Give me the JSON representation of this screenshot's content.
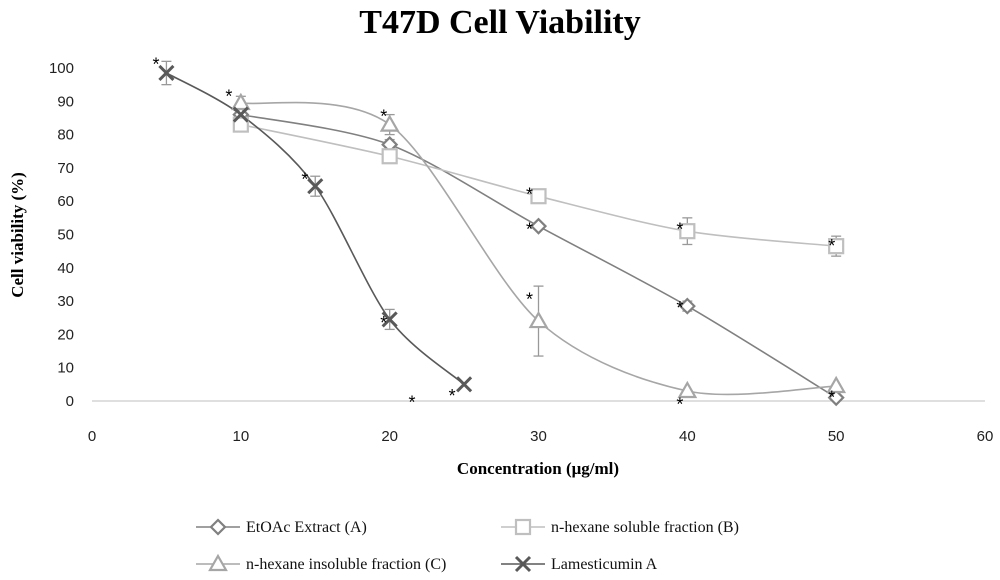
{
  "chart_data": {
    "type": "line",
    "title": "T47D Cell Viability",
    "xlabel": "Concentration (μg/ml)",
    "ylabel": "Cell viability (%)",
    "xlim": [
      0,
      60
    ],
    "ylim": [
      0,
      100
    ],
    "x_ticks": [
      "0",
      "10",
      "20",
      "30",
      "40",
      "50",
      "60"
    ],
    "y_ticks": [
      "0",
      "10",
      "20",
      "30",
      "40",
      "50",
      "60",
      "70",
      "80",
      "90",
      "100"
    ],
    "grid": false,
    "legend_position": "bottom",
    "series": [
      {
        "name": "EtOAc Extract (A)",
        "marker": "diamond",
        "color": "#808080",
        "x": [
          10,
          20,
          30,
          40,
          50
        ],
        "y": [
          86,
          77,
          52.5,
          28.5,
          1
        ],
        "err": [
          0,
          1.5,
          0,
          1.5,
          0
        ]
      },
      {
        "name": "n-hexane soluble fraction (B)",
        "marker": "square",
        "color": "#bfbfbf",
        "x": [
          10,
          20,
          30,
          40,
          50
        ],
        "y": [
          83,
          73.5,
          61.5,
          51,
          46.5
        ],
        "err": [
          0,
          0,
          0,
          4,
          3
        ]
      },
      {
        "name": "n-hexane insoluble fraction (C)",
        "marker": "triangle",
        "color": "#a6a6a6",
        "x": [
          10,
          20,
          30,
          40,
          50
        ],
        "y": [
          89.5,
          83,
          24,
          3,
          4.5
        ],
        "err": [
          2,
          3,
          10.5,
          0,
          0
        ]
      },
      {
        "name": "Lamesticumin A",
        "marker": "x",
        "color": "#595959",
        "x": [
          5,
          10,
          15,
          20,
          25
        ],
        "y": [
          98.5,
          86,
          64.5,
          24.5,
          5
        ],
        "err": [
          3.5,
          0,
          3,
          3,
          0
        ]
      }
    ],
    "annotations": [
      {
        "text": "*",
        "x": 4.3,
        "y": 102.5
      },
      {
        "text": "*",
        "x": 9.2,
        "y": 93
      },
      {
        "text": "*",
        "x": 14.3,
        "y": 68
      },
      {
        "text": "*",
        "x": 19.6,
        "y": 87
      },
      {
        "text": "*",
        "x": 19.6,
        "y": 25
      },
      {
        "text": "*",
        "x": 21.5,
        "y": 1
      },
      {
        "text": "*",
        "x": 24.2,
        "y": 3
      },
      {
        "text": "*",
        "x": 29.4,
        "y": 63.5
      },
      {
        "text": "*",
        "x": 29.4,
        "y": 53
      },
      {
        "text": "*",
        "x": 29.4,
        "y": 32
      },
      {
        "text": "*",
        "x": 39.5,
        "y": 53
      },
      {
        "text": "*",
        "x": 39.5,
        "y": 29.5
      },
      {
        "text": "*",
        "x": 39.5,
        "y": 0.5
      },
      {
        "text": "*",
        "x": 49.7,
        "y": 48
      },
      {
        "text": "*",
        "x": 49.7,
        "y": 2.5
      }
    ]
  }
}
